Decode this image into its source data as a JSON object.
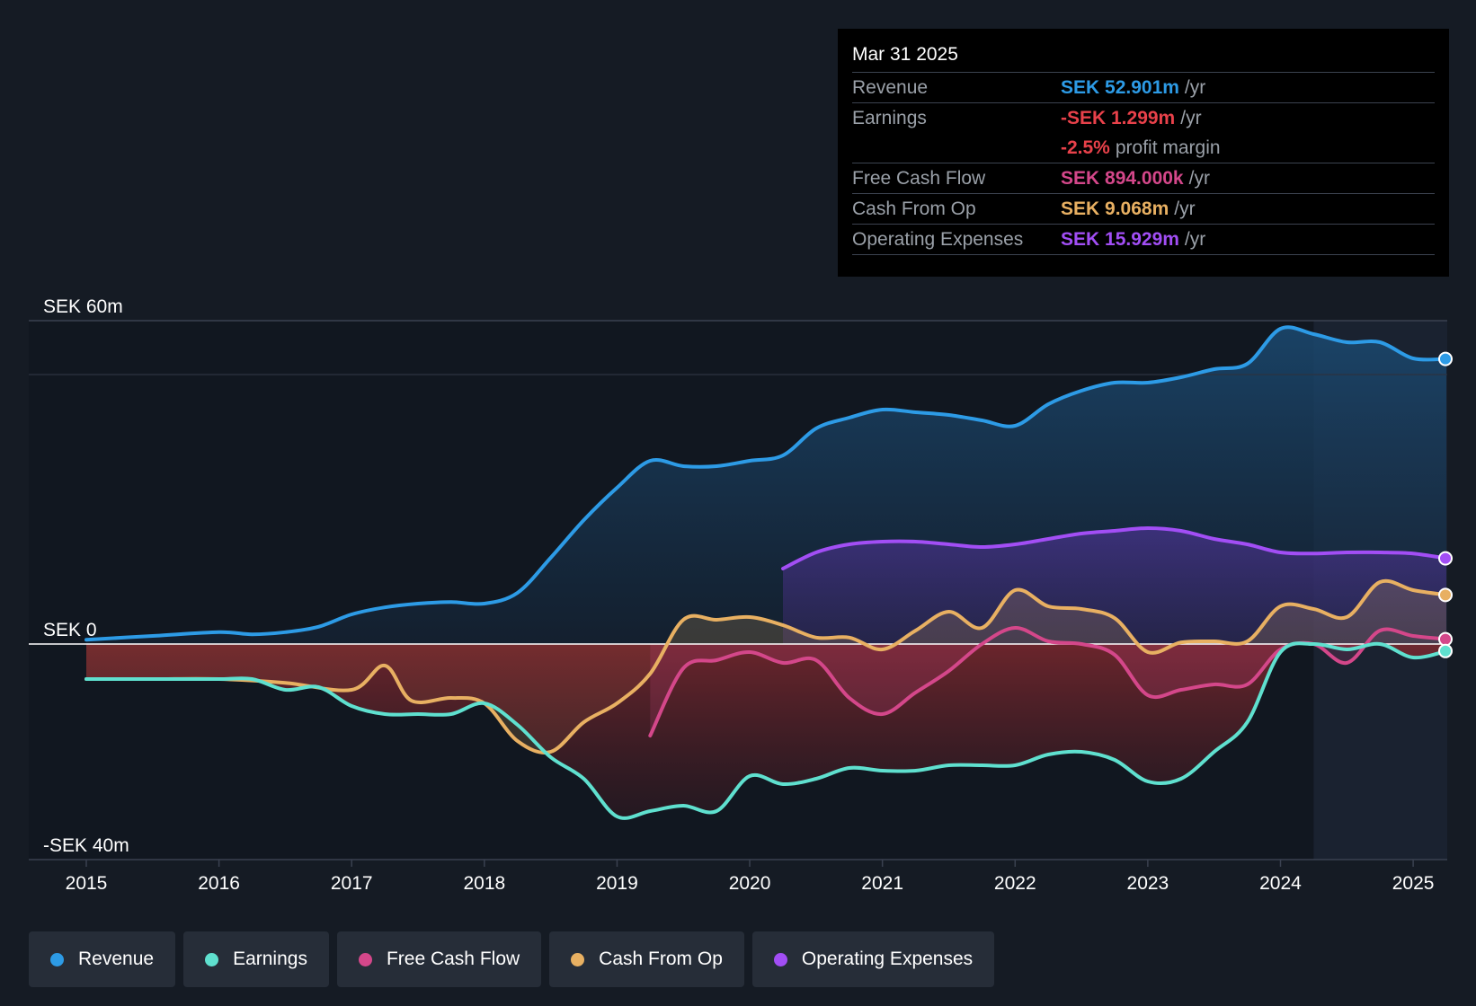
{
  "tooltip": {
    "date": "Mar 31 2025",
    "rows": [
      {
        "label": "Revenue",
        "value": "SEK 52.901m",
        "unit": "/yr",
        "color": "#2d9be6"
      },
      {
        "label": "Earnings",
        "value": "-SEK 1.299m",
        "unit": "/yr",
        "color": "#e8414a"
      },
      {
        "label": "",
        "value": "-2.5%",
        "unit": "profit margin",
        "color": "#e8414a"
      },
      {
        "label": "Free Cash Flow",
        "value": "SEK 894.000k",
        "unit": "/yr",
        "color": "#d4478a"
      },
      {
        "label": "Cash From Op",
        "value": "SEK 9.068m",
        "unit": "/yr",
        "color": "#e8b062"
      },
      {
        "label": "Operating Expenses",
        "value": "SEK 15.929m",
        "unit": "/yr",
        "color": "#a24ef5"
      }
    ]
  },
  "legend": [
    {
      "label": "Revenue",
      "color": "#2d9be6"
    },
    {
      "label": "Earnings",
      "color": "#5fe0cf"
    },
    {
      "label": "Free Cash Flow",
      "color": "#d4478a"
    },
    {
      "label": "Cash From Op",
      "color": "#e8b062"
    },
    {
      "label": "Operating Expenses",
      "color": "#a24ef5"
    }
  ],
  "chart_data": {
    "type": "area",
    "title": "",
    "xlabel": "",
    "ylabel": "",
    "y_labels": [
      "SEK 60m",
      "SEK 0",
      "-SEK 40m"
    ],
    "ylim": [
      -40,
      60
    ],
    "xlim": [
      2015,
      2025.25
    ],
    "x_ticks": [
      2015,
      2016,
      2017,
      2018,
      2019,
      2020,
      2021,
      2022,
      2023,
      2024,
      2025
    ],
    "x_tick_labels": [
      "2015",
      "2016",
      "2017",
      "2018",
      "2019",
      "2020",
      "2021",
      "2022",
      "2023",
      "2024",
      "2025"
    ],
    "forecast_start": 2024.25,
    "series": [
      {
        "name": "Revenue",
        "color": "#2d9be6",
        "x": [
          2015,
          2015.5,
          2016,
          2016.25,
          2016.5,
          2016.75,
          2017,
          2017.25,
          2017.5,
          2017.75,
          2018,
          2018.25,
          2018.5,
          2018.75,
          2019,
          2019.25,
          2019.5,
          2019.75,
          2020,
          2020.25,
          2020.5,
          2020.75,
          2021,
          2021.25,
          2021.5,
          2021.75,
          2022,
          2022.25,
          2022.5,
          2022.75,
          2023,
          2023.25,
          2023.5,
          2023.75,
          2024,
          2024.25,
          2024.5,
          2024.75,
          2025,
          2025.25
        ],
        "values": [
          0.8,
          1.5,
          2.2,
          1.8,
          2.2,
          3.2,
          5.5,
          6.8,
          7.5,
          7.8,
          7.5,
          9.5,
          16,
          23,
          29,
          34,
          33,
          33,
          34,
          35,
          40,
          42,
          43.5,
          43,
          42.5,
          41.5,
          40.5,
          44.5,
          47,
          48.5,
          48.5,
          49.5,
          51,
          52,
          58.5,
          57.5,
          56,
          56,
          53,
          52.9
        ]
      },
      {
        "name": "Operating Expenses",
        "color": "#a24ef5",
        "x": [
          2020.25,
          2020.5,
          2020.75,
          2021,
          2021.25,
          2021.5,
          2021.75,
          2022,
          2022.25,
          2022.5,
          2022.75,
          2023,
          2023.25,
          2023.5,
          2023.75,
          2024,
          2024.25,
          2024.5,
          2024.75,
          2025,
          2025.25
        ],
        "values": [
          14,
          17,
          18.5,
          19,
          19,
          18.5,
          18,
          18.5,
          19.5,
          20.5,
          21,
          21.5,
          21,
          19.5,
          18.5,
          17,
          16.8,
          17,
          17,
          16.8,
          15.9
        ]
      },
      {
        "name": "Cash From Op",
        "color": "#e8b062",
        "x": [
          2015,
          2015.5,
          2016,
          2016.5,
          2017,
          2017.25,
          2017.45,
          2017.75,
          2018,
          2018.25,
          2018.5,
          2018.75,
          2019,
          2019.25,
          2019.5,
          2019.75,
          2020,
          2020.25,
          2020.5,
          2020.75,
          2021,
          2021.25,
          2021.5,
          2021.75,
          2022,
          2022.25,
          2022.5,
          2022.75,
          2023,
          2023.25,
          2023.5,
          2023.75,
          2024,
          2024.25,
          2024.5,
          2024.75,
          2025,
          2025.25
        ],
        "values": [
          -6.5,
          -6.5,
          -6.5,
          -7.2,
          -8.5,
          -4,
          -10.5,
          -10,
          -11,
          -18,
          -20,
          -14.5,
          -11,
          -5.5,
          4.5,
          4.5,
          5,
          3.5,
          1.2,
          1.2,
          -1,
          2.5,
          6,
          3,
          10,
          7,
          6.5,
          4.8,
          -1.5,
          0.3,
          0.5,
          0.5,
          7,
          6.5,
          5,
          11.5,
          10,
          9.1
        ]
      },
      {
        "name": "Free Cash Flow",
        "color": "#d4478a",
        "x": [
          2019.25,
          2019.5,
          2019.75,
          2020,
          2020.25,
          2020.5,
          2020.75,
          2021,
          2021.25,
          2021.5,
          2021.75,
          2022,
          2022.25,
          2022.5,
          2022.75,
          2023,
          2023.25,
          2023.5,
          2023.75,
          2024,
          2024.25,
          2024.5,
          2024.75,
          2025,
          2025.25
        ],
        "values": [
          -17,
          -4.5,
          -3,
          -1.5,
          -3.5,
          -3,
          -10,
          -13,
          -9,
          -5,
          0,
          3,
          0.5,
          0,
          -2,
          -9.5,
          -8.5,
          -7.5,
          -7.5,
          -1,
          0,
          -3.5,
          2.5,
          1.5,
          0.9
        ]
      },
      {
        "name": "Earnings",
        "color": "#5fe0cf",
        "x": [
          2015,
          2015.5,
          2016,
          2016.25,
          2016.5,
          2016.75,
          2017,
          2017.25,
          2017.5,
          2017.75,
          2018,
          2018.25,
          2018.5,
          2018.75,
          2019,
          2019.25,
          2019.5,
          2019.75,
          2020,
          2020.25,
          2020.5,
          2020.75,
          2021,
          2021.25,
          2021.5,
          2021.75,
          2022,
          2022.25,
          2022.5,
          2022.75,
          2023,
          2023.25,
          2023.5,
          2023.75,
          2024,
          2024.25,
          2024.5,
          2024.75,
          2025,
          2025.25
        ],
        "values": [
          -6.5,
          -6.5,
          -6.5,
          -6.5,
          -8.5,
          -8,
          -11.5,
          -13,
          -13,
          -13,
          -11,
          -15,
          -21,
          -25,
          -32,
          -31,
          -30,
          -31,
          -24.5,
          -26,
          -25,
          -23,
          -23.5,
          -23.5,
          -22.5,
          -22.5,
          -22.5,
          -20.5,
          -20,
          -21.5,
          -25.5,
          -25,
          -20,
          -14.5,
          -1.5,
          0,
          -1,
          0,
          -2.5,
          -1.3
        ]
      }
    ]
  }
}
